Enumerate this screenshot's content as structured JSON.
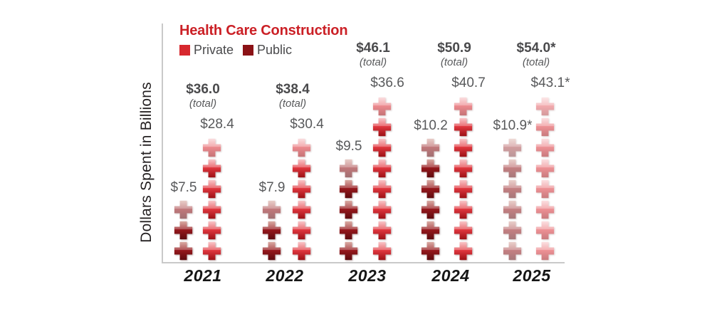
{
  "title": "Health Care Construction",
  "legend": {
    "private": "Private",
    "public": "Public"
  },
  "y_axis_label": "Dollars Spent in Billions",
  "colors": {
    "title_red": "#cb2026",
    "private_swatch": "#d7282e",
    "public_swatch": "#8b1216",
    "label_gray": "#58595b",
    "label_dark_gray": "#4a4a4c",
    "axis_gray": "#c9c9c9"
  },
  "chart_data": {
    "type": "bar",
    "subtype": "pictograph-crosses",
    "title": "Health Care Construction",
    "ylabel": "Dollars Spent in Billions",
    "xlabel": "",
    "unit": "$ billions",
    "grid": false,
    "legend_position": "top-left",
    "categories": [
      "2021",
      "2022",
      "2023",
      "2024",
      "2025"
    ],
    "series": [
      {
        "name": "Private",
        "values": [
          28.4,
          30.4,
          36.6,
          40.7,
          43.1
        ]
      },
      {
        "name": "Public",
        "values": [
          7.5,
          7.9,
          9.5,
          10.2,
          10.9
        ]
      }
    ],
    "totals": [
      36.0,
      38.4,
      46.1,
      50.9,
      54.0
    ],
    "projected_categories": [
      "2025"
    ],
    "years": [
      {
        "year": "2021",
        "total_label": "$36.0",
        "total_word": "(total)",
        "private_label": "$28.4",
        "public_label": "$7.5",
        "private_crosses": 6,
        "public_crosses": 3,
        "projected": false
      },
      {
        "year": "2022",
        "total_label": "$38.4",
        "total_word": "(total)",
        "private_label": "$30.4",
        "public_label": "$7.9",
        "private_crosses": 6,
        "public_crosses": 3,
        "projected": false
      },
      {
        "year": "2023",
        "total_label": "$46.1",
        "total_word": "(total)",
        "private_label": "$36.6",
        "public_label": "$9.5",
        "private_crosses": 8,
        "public_crosses": 5,
        "projected": false
      },
      {
        "year": "2024",
        "total_label": "$50.9",
        "total_word": "(total)",
        "private_label": "$40.7",
        "public_label": "$10.2",
        "private_crosses": 8,
        "public_crosses": 6,
        "projected": false
      },
      {
        "year": "2025",
        "total_label": "$54.0*",
        "total_word": "(total)",
        "private_label": "$43.1*",
        "public_label": "$10.9*",
        "private_crosses": 8,
        "public_crosses": 6,
        "projected": true
      }
    ]
  }
}
